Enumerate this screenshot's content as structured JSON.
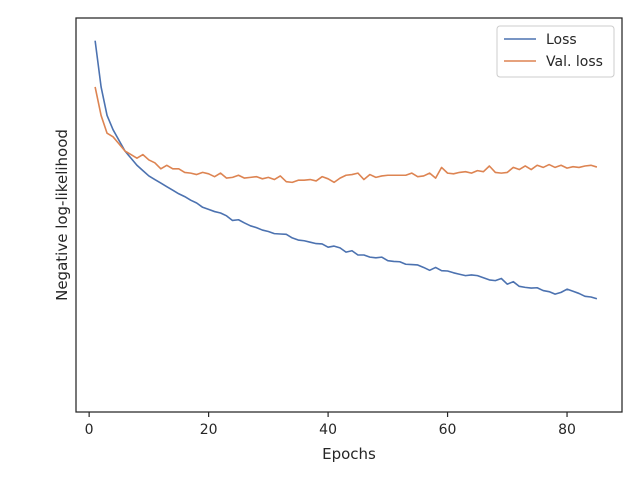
{
  "chart_data": {
    "type": "line",
    "title": "",
    "xlabel": "Epochs",
    "ylabel": "Negative log-likelihood",
    "xlim": [
      -2.2,
      89.2
    ],
    "ylim": [
      0,
      1
    ],
    "y_ticks_shown": false,
    "x_ticks": [
      0,
      20,
      40,
      60,
      80
    ],
    "grid": false,
    "legend_position": "top-right",
    "series": [
      {
        "name": "Loss",
        "color": "#4c72b0",
        "x": [
          1,
          2,
          3,
          4,
          5,
          6,
          7,
          8,
          9,
          10,
          11,
          12,
          13,
          14,
          15,
          16,
          17,
          18,
          19,
          20,
          21,
          22,
          23,
          24,
          25,
          26,
          27,
          28,
          29,
          30,
          31,
          32,
          33,
          34,
          35,
          36,
          37,
          38,
          39,
          40,
          41,
          42,
          43,
          44,
          45,
          46,
          47,
          48,
          49,
          50,
          51,
          52,
          53,
          54,
          55,
          56,
          57,
          58,
          59,
          60,
          61,
          62,
          63,
          64,
          65,
          66,
          67,
          68,
          69,
          70,
          71,
          72,
          73,
          74,
          75,
          76,
          77,
          78,
          79,
          80,
          81,
          82,
          83,
          84,
          85
        ],
        "values": [
          0.97,
          0.84,
          0.76,
          0.72,
          0.69,
          0.66,
          0.64,
          0.62,
          0.605,
          0.59,
          0.58,
          0.57,
          0.56,
          0.55,
          0.54,
          0.532,
          0.522,
          0.514,
          0.502,
          0.496,
          0.49,
          0.486,
          0.478,
          0.465,
          0.467,
          0.458,
          0.45,
          0.445,
          0.438,
          0.434,
          0.428,
          0.427,
          0.426,
          0.416,
          0.41,
          0.408,
          0.404,
          0.4,
          0.399,
          0.39,
          0.393,
          0.388,
          0.376,
          0.38,
          0.368,
          0.368,
          0.362,
          0.36,
          0.362,
          0.352,
          0.35,
          0.349,
          0.342,
          0.341,
          0.34,
          0.333,
          0.325,
          0.333,
          0.324,
          0.323,
          0.318,
          0.314,
          0.31,
          0.312,
          0.31,
          0.304,
          0.298,
          0.296,
          0.302,
          0.286,
          0.293,
          0.28,
          0.277,
          0.275,
          0.276,
          0.268,
          0.265,
          0.258,
          0.263,
          0.272,
          0.266,
          0.26,
          0.252,
          0.25,
          0.245
        ]
      },
      {
        "name": "Val. loss",
        "color": "#dd8452",
        "x": [
          1,
          2,
          3,
          4,
          5,
          6,
          7,
          8,
          9,
          10,
          11,
          12,
          13,
          14,
          15,
          16,
          17,
          18,
          19,
          20,
          21,
          22,
          23,
          24,
          25,
          26,
          27,
          28,
          29,
          30,
          31,
          32,
          33,
          34,
          35,
          36,
          37,
          38,
          39,
          40,
          41,
          42,
          43,
          44,
          45,
          46,
          47,
          48,
          49,
          50,
          51,
          52,
          53,
          54,
          55,
          56,
          57,
          58,
          59,
          60,
          61,
          62,
          63,
          64,
          65,
          66,
          67,
          68,
          69,
          70,
          71,
          72,
          73,
          74,
          75,
          76,
          77,
          78,
          79,
          80,
          81,
          82,
          83,
          84,
          85
        ],
        "values": [
          0.84,
          0.76,
          0.71,
          0.7,
          0.68,
          0.66,
          0.65,
          0.64,
          0.65,
          0.635,
          0.627,
          0.61,
          0.62,
          0.61,
          0.61,
          0.6,
          0.598,
          0.594,
          0.6,
          0.596,
          0.588,
          0.598,
          0.584,
          0.586,
          0.592,
          0.584,
          0.586,
          0.588,
          0.582,
          0.586,
          0.58,
          0.59,
          0.574,
          0.572,
          0.578,
          0.578,
          0.58,
          0.576,
          0.588,
          0.582,
          0.572,
          0.584,
          0.592,
          0.594,
          0.598,
          0.58,
          0.594,
          0.586,
          0.59,
          0.592,
          0.592,
          0.592,
          0.592,
          0.598,
          0.588,
          0.59,
          0.598,
          0.584,
          0.614,
          0.598,
          0.596,
          0.6,
          0.602,
          0.598,
          0.605,
          0.602,
          0.618,
          0.6,
          0.598,
          0.6,
          0.614,
          0.608,
          0.618,
          0.608,
          0.62,
          0.614,
          0.622,
          0.614,
          0.62,
          0.612,
          0.616,
          0.614,
          0.618,
          0.62,
          0.615
        ]
      }
    ]
  }
}
